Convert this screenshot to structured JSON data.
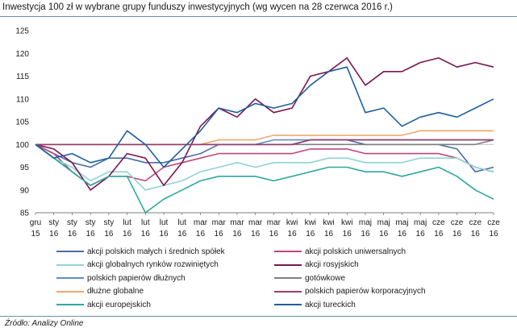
{
  "title": "Inwestycja 100 zł w wybrane grupy funduszy inwestycyjnych (wg wycen na 28 czerwca 2016 r.)",
  "source": "Źródło: Analizy Online",
  "chart_data": {
    "type": "line",
    "ylim": [
      85,
      125
    ],
    "yticks": [
      "125",
      "120",
      "115",
      "110",
      "105",
      "100",
      "95",
      "90",
      "85"
    ],
    "ytick_values": [
      125,
      120,
      115,
      110,
      105,
      100,
      95,
      90,
      85
    ],
    "xticks": [
      {
        "top": "gru",
        "bottom": "15"
      },
      {
        "top": "sty",
        "bottom": "16"
      },
      {
        "top": "sty",
        "bottom": "16"
      },
      {
        "top": "sty",
        "bottom": "16"
      },
      {
        "top": "sty",
        "bottom": "16"
      },
      {
        "top": "lut",
        "bottom": "16"
      },
      {
        "top": "lut",
        "bottom": "16"
      },
      {
        "top": "lut",
        "bottom": "16"
      },
      {
        "top": "lut",
        "bottom": "16"
      },
      {
        "top": "mar",
        "bottom": "16"
      },
      {
        "top": "mar",
        "bottom": "16"
      },
      {
        "top": "mar",
        "bottom": "16"
      },
      {
        "top": "mar",
        "bottom": "16"
      },
      {
        "top": "mar",
        "bottom": "16"
      },
      {
        "top": "kwi",
        "bottom": "16"
      },
      {
        "top": "kwi",
        "bottom": "16"
      },
      {
        "top": "kwi",
        "bottom": "16"
      },
      {
        "top": "kwi",
        "bottom": "16"
      },
      {
        "top": "maj",
        "bottom": "16"
      },
      {
        "top": "maj",
        "bottom": "16"
      },
      {
        "top": "maj",
        "bottom": "16"
      },
      {
        "top": "maj",
        "bottom": "16"
      },
      {
        "top": "cze",
        "bottom": "16"
      },
      {
        "top": "cze",
        "bottom": "16"
      },
      {
        "top": "cze",
        "bottom": "16"
      },
      {
        "top": "cze",
        "bottom": "16"
      }
    ],
    "n_points": 26,
    "series": [
      {
        "name": "akcji polskich małych i średnich spółek",
        "color": "#4a6ea8",
        "values": [
          100,
          98,
          96,
          95,
          97,
          97,
          96,
          96,
          97,
          98,
          100,
          100,
          100,
          100,
          100,
          101,
          101,
          101,
          100,
          100,
          100,
          100,
          100,
          99,
          94,
          95
        ]
      },
      {
        "name": "akcji polskich uniwersalnych",
        "color": "#c2457e",
        "values": [
          100,
          98,
          94,
          91,
          93,
          93,
          92,
          95,
          96,
          97,
          98,
          98,
          98,
          98,
          98,
          99,
          99,
          99,
          98,
          98,
          98,
          98,
          98,
          97,
          95,
          94
        ]
      },
      {
        "name": "akcji globalnych rynków rozwiniętych",
        "color": "#8fd3d8",
        "values": [
          100,
          97,
          95,
          92,
          94,
          94,
          90,
          91,
          92,
          94,
          95,
          96,
          95,
          96,
          96,
          96,
          97,
          97,
          96,
          96,
          96,
          97,
          97,
          97,
          95,
          94
        ]
      },
      {
        "name": "akcji rosyjskich",
        "color": "#7a1650",
        "values": [
          100,
          99,
          96,
          90,
          93,
          98,
          97,
          91,
          96,
          104,
          108,
          106,
          110,
          107,
          108,
          115,
          116,
          119,
          113,
          116,
          116,
          118,
          119,
          117,
          118,
          117
        ]
      },
      {
        "name": "polskich papierów dłużnych",
        "color": "#5f8fc0",
        "values": [
          100,
          100,
          100,
          100,
          100,
          100,
          100,
          100,
          100,
          100,
          100,
          100,
          100,
          101,
          101,
          101,
          101,
          101,
          101,
          101,
          101,
          101,
          101,
          101,
          101,
          101
        ]
      },
      {
        "name": "gotówkowe",
        "color": "#7f7f7f",
        "values": [
          100,
          100,
          100,
          100,
          100,
          100,
          100,
          100,
          100,
          100,
          100,
          100,
          100,
          100,
          100,
          100,
          100,
          100,
          100,
          100,
          100,
          100,
          100,
          100,
          100,
          101
        ]
      },
      {
        "name": "dłużne globalne",
        "color": "#f0a66c",
        "values": [
          100,
          100,
          100,
          100,
          100,
          100,
          100,
          100,
          100,
          100,
          101,
          101,
          101,
          102,
          102,
          102,
          102,
          102,
          102,
          102,
          102,
          103,
          103,
          103,
          103,
          103
        ]
      },
      {
        "name": "polskich papierów korporacyjnych",
        "color": "#9b3d6b",
        "values": [
          100,
          100,
          100,
          100,
          100,
          100,
          100,
          100,
          100,
          100,
          100,
          100,
          100,
          100,
          100,
          101,
          101,
          101,
          101,
          101,
          101,
          101,
          101,
          101,
          101,
          101
        ]
      },
      {
        "name": "akcji europejskich",
        "color": "#2ea89e",
        "values": [
          100,
          97,
          94,
          91,
          93,
          93,
          85,
          88,
          90,
          92,
          93,
          93,
          93,
          92,
          93,
          94,
          95,
          95,
          94,
          94,
          93,
          94,
          95,
          93,
          90,
          88
        ]
      },
      {
        "name": "akcji tureckich",
        "color": "#1f5fa0",
        "values": [
          100,
          97,
          98,
          96,
          97,
          103,
          100,
          95,
          99,
          103,
          108,
          107,
          109,
          108,
          109,
          113,
          116,
          117,
          107,
          108,
          104,
          106,
          107,
          106,
          108,
          110
        ]
      }
    ]
  }
}
